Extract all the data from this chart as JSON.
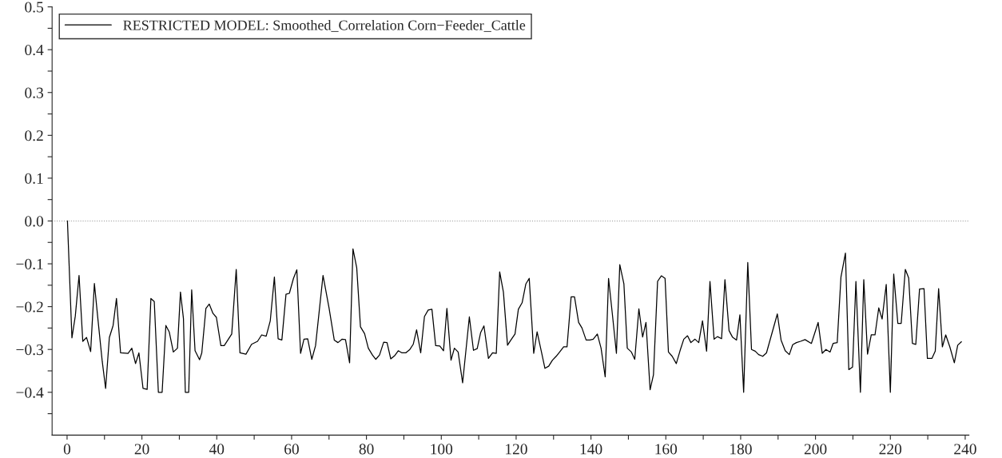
{
  "chart_data": {
    "type": "line",
    "series": [
      {
        "name": "RESTRICTED MODEL: Smoothed_Correlation Corn−Feeder_Cattle",
        "color": "#000000",
        "line_style": "solid",
        "x": [
          0.1,
          1.3,
          2.2,
          3.2,
          4.2,
          5.2,
          6.3,
          7.3,
          8.3,
          9.4,
          10.3,
          11.3,
          12.3,
          13.2,
          14.3,
          16.3,
          17.3,
          18.3,
          19.2,
          20.3,
          21.4,
          22.4,
          23.3,
          24.4,
          25.4,
          26.4,
          27.3,
          28.4,
          29.5,
          30.3,
          31.1,
          31.6,
          32.5,
          33.3,
          34.2,
          35.4,
          36.0,
          37.1,
          38.0,
          39.0,
          39.9,
          41.1,
          42.0,
          44.0,
          45.2,
          46.2,
          47.8,
          49.3,
          50.9,
          52.0,
          53.2,
          54.3,
          55.4,
          56.4,
          57.4,
          58.5,
          59.4,
          60.5,
          61.4,
          62.4,
          63.3,
          64.3,
          65.4,
          66.4,
          68.4,
          70.0,
          71.4,
          72.4,
          73.5,
          74.4,
          75.5,
          76.4,
          77.4,
          78.4,
          79.5,
          80.5,
          81.6,
          82.5,
          83.5,
          84.6,
          85.5,
          86.5,
          87.6,
          88.5,
          89.5,
          90.5,
          91.6,
          92.5,
          93.4,
          94.5,
          95.5,
          96.5,
          97.5,
          98.5,
          99.6,
          100.6,
          101.5,
          102.6,
          103.5,
          104.5,
          105.7,
          107.5,
          108.6,
          109.6,
          110.5,
          111.4,
          112.6,
          113.7,
          114.7,
          115.6,
          116.6,
          117.7,
          118.6,
          119.7,
          120.6,
          121.6,
          122.6,
          123.5,
          124.7,
          125.6,
          126.7,
          127.7,
          128.7,
          129.7,
          130.7,
          131.8,
          132.7,
          133.6,
          134.7,
          135.6,
          136.7,
          137.6,
          138.7,
          139.7,
          140.6,
          141.7,
          142.7,
          143.8,
          144.7,
          145.7,
          146.8,
          147.7,
          148.8,
          149.7,
          150.8,
          151.7,
          152.8,
          153.8,
          154.7,
          155.8,
          156.7,
          157.8,
          158.8,
          159.8,
          160.7,
          161.7,
          162.8,
          163.8,
          164.8,
          165.8,
          166.7,
          167.8,
          168.8,
          169.8,
          170.9,
          171.8,
          172.9,
          173.8,
          174.9,
          175.8,
          176.9,
          177.8,
          178.9,
          179.8,
          180.8,
          181.9,
          182.9,
          183.9,
          184.8,
          185.9,
          186.9,
          189.8,
          190.8,
          191.9,
          193.0,
          193.9,
          194.9,
          196.0,
          197.2,
          198.9,
          200.7,
          201.8,
          202.8,
          203.9,
          204.7,
          205.8,
          206.8,
          208.0,
          208.9,
          209.9,
          210.8,
          212.0,
          212.9,
          213.9,
          214.9,
          215.9,
          216.9,
          217.8,
          218.9,
          220.0,
          220.9,
          222.0,
          222.9,
          224.0,
          224.9,
          225.9,
          226.8,
          227.8,
          229.0,
          229.9,
          231.1,
          232.0,
          232.9,
          233.9,
          234.8,
          235.9,
          237.1,
          238.0,
          239.0
        ],
        "values": [
          0,
          -0.273,
          -0.222,
          -0.127,
          -0.281,
          -0.272,
          -0.305,
          -0.146,
          -0.234,
          -0.328,
          -0.391,
          -0.272,
          -0.244,
          -0.181,
          -0.308,
          -0.309,
          -0.297,
          -0.333,
          -0.308,
          -0.391,
          -0.393,
          -0.181,
          -0.188,
          -0.4,
          -0.4,
          -0.244,
          -0.259,
          -0.306,
          -0.297,
          -0.166,
          -0.228,
          -0.4,
          -0.4,
          -0.161,
          -0.303,
          -0.324,
          -0.308,
          -0.204,
          -0.194,
          -0.216,
          -0.225,
          -0.291,
          -0.291,
          -0.264,
          -0.113,
          -0.308,
          -0.311,
          -0.288,
          -0.281,
          -0.266,
          -0.269,
          -0.233,
          -0.131,
          -0.275,
          -0.278,
          -0.171,
          -0.169,
          -0.134,
          -0.114,
          -0.309,
          -0.276,
          -0.275,
          -0.323,
          -0.291,
          -0.127,
          -0.203,
          -0.278,
          -0.284,
          -0.276,
          -0.277,
          -0.331,
          -0.065,
          -0.109,
          -0.247,
          -0.263,
          -0.297,
          -0.313,
          -0.323,
          -0.313,
          -0.283,
          -0.284,
          -0.322,
          -0.314,
          -0.303,
          -0.308,
          -0.308,
          -0.3,
          -0.288,
          -0.254,
          -0.308,
          -0.223,
          -0.208,
          -0.206,
          -0.291,
          -0.292,
          -0.303,
          -0.204,
          -0.325,
          -0.297,
          -0.306,
          -0.378,
          -0.224,
          -0.302,
          -0.298,
          -0.261,
          -0.245,
          -0.321,
          -0.308,
          -0.309,
          -0.119,
          -0.166,
          -0.29,
          -0.278,
          -0.264,
          -0.206,
          -0.191,
          -0.147,
          -0.134,
          -0.309,
          -0.259,
          -0.303,
          -0.344,
          -0.339,
          -0.325,
          -0.316,
          -0.304,
          -0.294,
          -0.294,
          -0.177,
          -0.177,
          -0.237,
          -0.25,
          -0.278,
          -0.278,
          -0.276,
          -0.264,
          -0.297,
          -0.364,
          -0.134,
          -0.216,
          -0.309,
          -0.102,
          -0.147,
          -0.297,
          -0.306,
          -0.323,
          -0.205,
          -0.271,
          -0.237,
          -0.394,
          -0.359,
          -0.141,
          -0.128,
          -0.134,
          -0.306,
          -0.316,
          -0.333,
          -0.303,
          -0.276,
          -0.268,
          -0.284,
          -0.276,
          -0.284,
          -0.233,
          -0.304,
          -0.141,
          -0.276,
          -0.27,
          -0.275,
          -0.137,
          -0.256,
          -0.271,
          -0.278,
          -0.219,
          -0.4,
          -0.097,
          -0.3,
          -0.304,
          -0.312,
          -0.316,
          -0.308,
          -0.217,
          -0.278,
          -0.303,
          -0.312,
          -0.289,
          -0.284,
          -0.281,
          -0.277,
          -0.286,
          -0.237,
          -0.309,
          -0.3,
          -0.306,
          -0.286,
          -0.284,
          -0.131,
          -0.075,
          -0.347,
          -0.341,
          -0.141,
          -0.4,
          -0.137,
          -0.311,
          -0.266,
          -0.266,
          -0.203,
          -0.229,
          -0.148,
          -0.4,
          -0.124,
          -0.239,
          -0.239,
          -0.113,
          -0.133,
          -0.286,
          -0.288,
          -0.159,
          -0.158,
          -0.321,
          -0.321,
          -0.304,
          -0.158,
          -0.294,
          -0.266,
          -0.294,
          -0.331,
          -0.29,
          -0.282
        ]
      }
    ],
    "xlim": [
      -4,
      241
    ],
    "ylim": [
      -0.5,
      0.5
    ],
    "xticks": [
      0,
      {
        "value": 10,
        "label": null
      },
      20,
      {
        "value": 30,
        "label": null
      },
      40,
      {
        "value": 50,
        "label": null
      },
      60,
      {
        "value": 70,
        "label": null
      },
      80,
      {
        "value": 90,
        "label": null
      },
      100,
      {
        "value": 110,
        "label": null
      },
      120,
      {
        "value": 130,
        "label": null
      },
      140,
      {
        "value": 150,
        "label": null
      },
      160,
      {
        "value": 170,
        "label": null
      },
      180,
      {
        "value": 190,
        "label": null
      },
      200,
      {
        "value": 210,
        "label": null
      },
      220,
      {
        "value": 230,
        "label": null
      },
      240
    ],
    "yticks": [
      {
        "value": -0.45,
        "label": null
      },
      {
        "value": -0.4,
        "label": "−0.4"
      },
      {
        "value": -0.35,
        "label": null
      },
      {
        "value": -0.3,
        "label": "−0.3"
      },
      {
        "value": -0.25,
        "label": null
      },
      {
        "value": -0.2,
        "label": "−0.2"
      },
      {
        "value": -0.15,
        "label": null
      },
      {
        "value": -0.1,
        "label": "−0.1"
      },
      {
        "value": -0.05,
        "label": null
      },
      {
        "value": 0,
        "label": "0.0"
      },
      {
        "value": 0.05,
        "label": null
      },
      {
        "value": 0.1,
        "label": "0.1"
      },
      {
        "value": 0.15,
        "label": null
      },
      {
        "value": 0.2,
        "label": "0.2"
      },
      {
        "value": 0.25,
        "label": null
      },
      {
        "value": 0.3,
        "label": "0.3"
      },
      {
        "value": 0.35,
        "label": null
      },
      {
        "value": 0.4,
        "label": "0.4"
      },
      {
        "value": 0.45,
        "label": null
      },
      {
        "value": 0.5,
        "label": "0.5"
      }
    ],
    "ref_lines": [
      {
        "axis": "y",
        "value": 0,
        "color": "#999999",
        "line_style": "dotted"
      }
    ],
    "grid": false,
    "legend": "top left"
  }
}
